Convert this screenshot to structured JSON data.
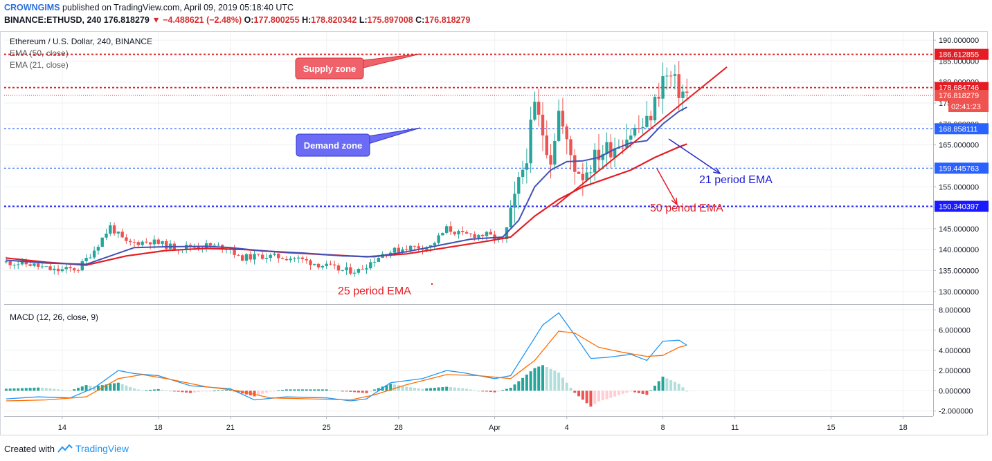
{
  "header": {
    "publisher": "CROWNGIMS",
    "published_text": "published on TradingView.com, April 09, 2019 05:18:40 UTC",
    "symbol": "BINANCE:ETHUSD, 240",
    "last": "176.818279",
    "change": "−4.488621 (−2.48%)",
    "o_label": "O:",
    "o_val": "177.800255",
    "h_label": "H:",
    "h_val": "178.820342",
    "l_label": "L:",
    "l_val": "175.897008",
    "c_label": "C:",
    "c_val": "176.818279"
  },
  "footer": {
    "created_with": "Created with",
    "brand": "TradingView"
  },
  "colors": {
    "up": "#26a69a",
    "down": "#ef5350",
    "ema_fast": "#3f51b5",
    "ema_slow": "#e51c23",
    "macd": "#2196f3",
    "signal": "#ff6d00",
    "supply_box": "#f0626b",
    "demand_box": "#6b6bf5"
  },
  "chart_data": {
    "type": "candlestick",
    "title": "Ethereum / U.S. Dollar, 240, BINANCE",
    "legend": [
      "EMA (50, close)",
      "EMA (21, close)"
    ],
    "ylim": [
      127,
      192
    ],
    "x_ticks": [
      {
        "label": "14",
        "i": 14
      },
      {
        "label": "18",
        "i": 38
      },
      {
        "label": "21",
        "i": 56
      },
      {
        "label": "25",
        "i": 80
      },
      {
        "label": "28",
        "i": 98
      },
      {
        "label": "Apr",
        "i": 122
      },
      {
        "label": "4",
        "i": 140
      },
      {
        "label": "8",
        "i": 164
      },
      {
        "label": "11",
        "i": 182
      },
      {
        "label": "15",
        "i": 206
      },
      {
        "label": "18",
        "i": 224
      }
    ],
    "y_ticks": [
      "190.000000",
      "185.000000",
      "180.000000",
      "175.000000",
      "170.000000",
      "165.000000",
      "160.000000",
      "155.000000",
      "150.000000",
      "145.000000",
      "140.000000",
      "135.000000",
      "130.000000"
    ],
    "y_tick_values": [
      190,
      185,
      180,
      175,
      170,
      165,
      160,
      155,
      150,
      145,
      140,
      135,
      130
    ],
    "levels": [
      {
        "label": "186.612855",
        "value": 186.612855,
        "color": "#e51c23",
        "style": "dotted-bold"
      },
      {
        "label": "178.684746",
        "value": 178.684746,
        "color": "#e51c23",
        "style": "dotted-bold"
      },
      {
        "label": "176.818279",
        "value": 176.818279,
        "color": "#ef5350",
        "style": "dotted-thin"
      },
      {
        "label": "168.858111",
        "value": 168.858111,
        "color": "#2962ff",
        "style": "dotted"
      },
      {
        "label": "159.445763",
        "value": 159.445763,
        "color": "#2962ff",
        "style": "dotted"
      },
      {
        "label": "150.340397",
        "value": 150.340397,
        "color": "#1a1aff",
        "style": "dotted-bold"
      }
    ],
    "countdown": "02:41:23",
    "annotations": {
      "supply": "Supply zone",
      "demand": "Demand zone",
      "ema21": "21 period EMA",
      "ema50": "50 period EMA",
      "ema25": "25 period EMA"
    },
    "keypoints": [
      [
        0,
        137
      ],
      [
        6,
        136.5
      ],
      [
        12,
        135
      ],
      [
        18,
        135.5
      ],
      [
        22,
        140
      ],
      [
        26,
        145.5
      ],
      [
        30,
        141.5
      ],
      [
        36,
        142
      ],
      [
        42,
        140.5
      ],
      [
        50,
        141
      ],
      [
        56,
        140.5
      ],
      [
        58,
        138
      ],
      [
        64,
        138.5
      ],
      [
        72,
        138
      ],
      [
        80,
        136
      ],
      [
        84,
        135
      ],
      [
        88,
        135
      ],
      [
        94,
        139
      ],
      [
        100,
        140.5
      ],
      [
        106,
        140.8
      ],
      [
        110,
        145
      ],
      [
        114,
        143.5
      ],
      [
        120,
        143.5
      ],
      [
        124,
        142
      ],
      [
        126,
        148
      ],
      [
        130,
        163
      ],
      [
        132,
        174
      ],
      [
        134,
        168
      ],
      [
        136,
        162
      ],
      [
        138,
        173
      ],
      [
        140,
        165
      ],
      [
        142,
        160
      ],
      [
        144,
        158
      ],
      [
        148,
        163
      ],
      [
        152,
        165
      ],
      [
        156,
        168
      ],
      [
        160,
        170
      ],
      [
        162,
        175
      ],
      [
        164,
        181
      ],
      [
        166,
        181
      ],
      [
        168,
        178
      ],
      [
        170,
        177
      ]
    ],
    "ema_fast": [
      [
        0,
        137.5
      ],
      [
        10,
        136.8
      ],
      [
        20,
        136.5
      ],
      [
        26,
        138.5
      ],
      [
        32,
        140.5
      ],
      [
        40,
        140.7
      ],
      [
        50,
        140.8
      ],
      [
        56,
        140.5
      ],
      [
        64,
        139.7
      ],
      [
        74,
        139.2
      ],
      [
        84,
        138.5
      ],
      [
        92,
        138.3
      ],
      [
        100,
        139.5
      ],
      [
        108,
        141
      ],
      [
        116,
        142.5
      ],
      [
        124,
        143
      ],
      [
        128,
        147
      ],
      [
        132,
        155
      ],
      [
        136,
        159
      ],
      [
        140,
        161
      ],
      [
        144,
        161.2
      ],
      [
        148,
        162
      ],
      [
        152,
        164
      ],
      [
        156,
        165.5
      ],
      [
        160,
        166
      ],
      [
        164,
        170
      ],
      [
        168,
        173
      ],
      [
        170,
        174
      ]
    ],
    "ema_slow": [
      [
        0,
        138
      ],
      [
        10,
        137
      ],
      [
        20,
        136.3
      ],
      [
        30,
        138.5
      ],
      [
        40,
        139.8
      ],
      [
        50,
        140.3
      ],
      [
        60,
        140
      ],
      [
        70,
        139.3
      ],
      [
        80,
        138.8
      ],
      [
        90,
        138.3
      ],
      [
        100,
        139
      ],
      [
        110,
        140.5
      ],
      [
        120,
        142
      ],
      [
        126,
        143
      ],
      [
        132,
        148
      ],
      [
        138,
        152
      ],
      [
        144,
        155
      ],
      [
        150,
        157
      ],
      [
        156,
        159
      ],
      [
        162,
        162
      ],
      [
        168,
        164.5
      ],
      [
        170,
        165.2
      ]
    ],
    "trendline": {
      "from": [
        137,
        150.3
      ],
      "to": [
        180,
        183.6
      ]
    },
    "macd": {
      "title": "MACD (12, 26, close, 9)",
      "ylim": [
        -2.5,
        8.5
      ],
      "y_ticks": [
        "8.000000",
        "6.000000",
        "4.000000",
        "2.000000",
        "0.000000",
        "-2.000000"
      ],
      "y_tick_values": [
        8,
        6,
        4,
        2,
        0,
        -2
      ],
      "macd_line": [
        [
          0,
          -0.8
        ],
        [
          8,
          -0.6
        ],
        [
          16,
          -0.7
        ],
        [
          22,
          0.3
        ],
        [
          28,
          2
        ],
        [
          32,
          1.7
        ],
        [
          38,
          1.5
        ],
        [
          46,
          0.5
        ],
        [
          56,
          0.2
        ],
        [
          62,
          -0.9
        ],
        [
          70,
          -0.6
        ],
        [
          80,
          -0.7
        ],
        [
          86,
          -1
        ],
        [
          90,
          -0.8
        ],
        [
          96,
          0.8
        ],
        [
          104,
          1.2
        ],
        [
          110,
          2
        ],
        [
          114,
          1.8
        ],
        [
          122,
          1.2
        ],
        [
          126,
          1.5
        ],
        [
          130,
          4
        ],
        [
          134,
          6.5
        ],
        [
          138,
          7.7
        ],
        [
          142,
          5.5
        ],
        [
          146,
          3.2
        ],
        [
          150,
          3.3
        ],
        [
          156,
          3.6
        ],
        [
          160,
          3
        ],
        [
          164,
          4.9
        ],
        [
          168,
          5
        ],
        [
          170,
          4.5
        ]
      ],
      "signal_line": [
        [
          0,
          -1
        ],
        [
          10,
          -0.9
        ],
        [
          20,
          -0.6
        ],
        [
          28,
          1.2
        ],
        [
          34,
          1.6
        ],
        [
          40,
          1.2
        ],
        [
          50,
          0.4
        ],
        [
          58,
          0
        ],
        [
          66,
          -0.7
        ],
        [
          76,
          -0.8
        ],
        [
          86,
          -0.9
        ],
        [
          92,
          -0.4
        ],
        [
          100,
          0.6
        ],
        [
          110,
          1.6
        ],
        [
          118,
          1.5
        ],
        [
          126,
          1.2
        ],
        [
          132,
          3
        ],
        [
          138,
          5.9
        ],
        [
          142,
          5.7
        ],
        [
          148,
          4.3
        ],
        [
          154,
          3.8
        ],
        [
          160,
          3.4
        ],
        [
          164,
          3.5
        ],
        [
          168,
          4.3
        ],
        [
          170,
          4.5
        ]
      ]
    }
  }
}
